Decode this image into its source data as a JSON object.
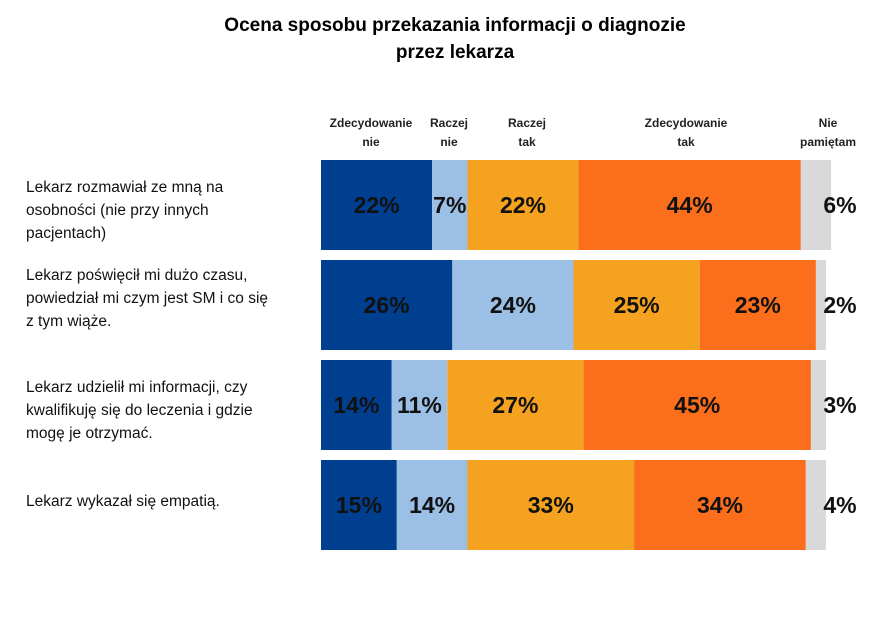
{
  "chart_data": {
    "type": "bar",
    "orientation": "horizontal",
    "stacked": "100%",
    "title": [
      "Ocena sposobu przekazania informacji o diagnozie",
      "przez lekarza"
    ],
    "categories": [
      [
        "Lekarz rozmawiał ze mną na",
        "osobności (nie przy innych",
        "pacjentach)"
      ],
      [
        "Lekarz poświęcił mi dużo czasu,",
        "powiedział mi czym jest SM i co się",
        "z tym wiąże."
      ],
      [
        "Lekarz udzielił mi informacji, czy",
        "kwalifikuję się do leczenia i gdzie",
        "mogę je otrzymać."
      ],
      [
        "Lekarz wykazał się empatią."
      ]
    ],
    "series": [
      {
        "name": [
          "Zdecydowanie",
          "nie"
        ],
        "color": "#003f8f",
        "values": [
          22,
          26,
          14,
          15
        ]
      },
      {
        "name": [
          "Raczej",
          "nie"
        ],
        "color": "#9cbfe5",
        "values": [
          7,
          24,
          11,
          14
        ]
      },
      {
        "name": [
          "Raczej",
          "tak"
        ],
        "color": "#f4a21f",
        "values": [
          22,
          25,
          27,
          33
        ]
      },
      {
        "name": [
          "Zdecydowanie",
          "tak"
        ],
        "color": "#fa6e1c",
        "values": [
          44,
          23,
          45,
          34
        ]
      },
      {
        "name": [
          "Nie",
          "pamiętam"
        ],
        "color": "#d9d9d9",
        "values": [
          6,
          2,
          3,
          4
        ]
      }
    ],
    "value_suffix": "%",
    "legend_position": "top",
    "grid": false
  }
}
